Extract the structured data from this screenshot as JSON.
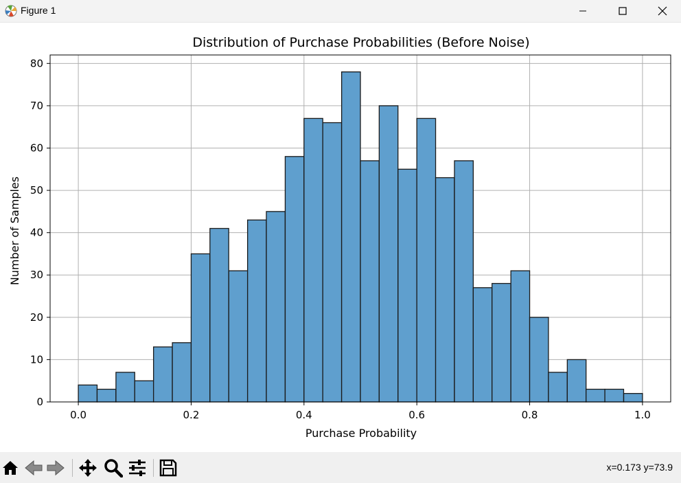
{
  "window": {
    "title": "Figure 1",
    "controls": {
      "minimize": "minimize",
      "maximize": "maximize",
      "close": "close"
    }
  },
  "toolbar": {
    "tools": [
      "home-icon",
      "back-arrow-icon",
      "forward-arrow-icon",
      "pan-icon",
      "zoom-icon",
      "configure-subplots-icon",
      "save-icon"
    ],
    "coords": "x=0.173 y=73.9"
  },
  "colors": {
    "bar_fill": "#5f9fce",
    "bar_edge": "#1a1a1a",
    "grid": "#b0b0b0"
  },
  "chart_data": {
    "type": "bar",
    "title": "Distribution of Purchase Probabilities (Before Noise)",
    "xlabel": "Purchase Probability",
    "ylabel": "Number of Samples",
    "xlim": [
      -0.05,
      1.05
    ],
    "ylim": [
      0,
      82
    ],
    "grid": true,
    "bin_width": 0.0333,
    "bin_starts": [
      0.0,
      0.0333,
      0.0667,
      0.1,
      0.1333,
      0.1667,
      0.2,
      0.2333,
      0.2667,
      0.3,
      0.3333,
      0.3667,
      0.4,
      0.4333,
      0.4667,
      0.5,
      0.5333,
      0.5667,
      0.6,
      0.6333,
      0.6667,
      0.7,
      0.7333,
      0.7667,
      0.8,
      0.8333,
      0.8667,
      0.9,
      0.9333,
      0.9667
    ],
    "values": [
      4,
      3,
      7,
      5,
      13,
      14,
      35,
      41,
      31,
      43,
      45,
      58,
      67,
      66,
      78,
      57,
      70,
      55,
      67,
      53,
      57,
      27,
      28,
      31,
      20,
      7,
      10,
      3,
      3,
      2
    ],
    "xticks": [
      0.0,
      0.2,
      0.4,
      0.6,
      0.8,
      1.0
    ],
    "xtick_labels": [
      "0.0",
      "0.2",
      "0.4",
      "0.6",
      "0.8",
      "1.0"
    ],
    "yticks": [
      0,
      10,
      20,
      30,
      40,
      50,
      60,
      70,
      80
    ],
    "ytick_labels": [
      "0",
      "10",
      "20",
      "30",
      "40",
      "50",
      "60",
      "70",
      "80"
    ]
  }
}
